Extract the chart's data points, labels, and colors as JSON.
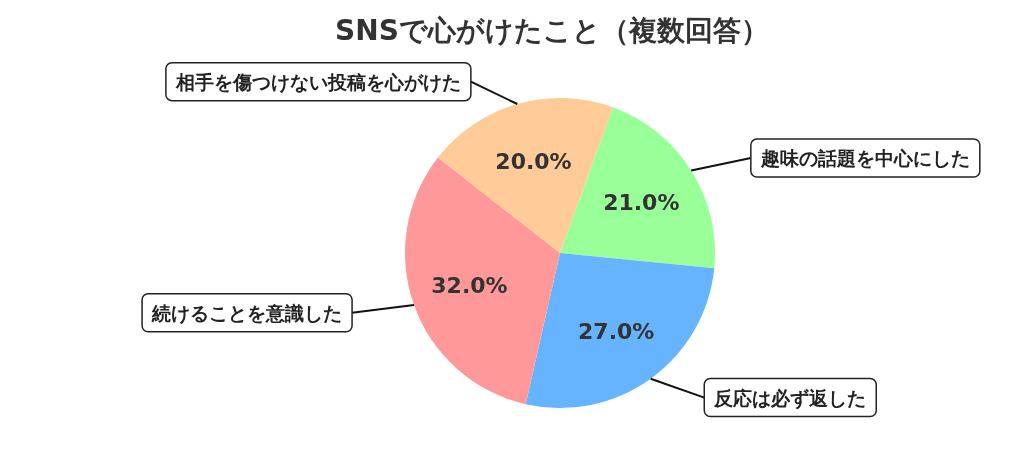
{
  "chart_data": {
    "type": "pie",
    "title": "SNSで心がけたこと（複数回答）",
    "categories": [
      "趣味の話題を中心にした",
      "反応は必ず返した",
      "続けることを意識した",
      "相手を傷つけない投稿を心がけた"
    ],
    "values": [
      21,
      27,
      32,
      20
    ],
    "colors": [
      "#99ff99",
      "#66b3ff",
      "#ff9999",
      "#ffcc99"
    ],
    "value_labels": [
      "21.0%",
      "27.0%",
      "32.0%",
      "20.0%"
    ]
  }
}
